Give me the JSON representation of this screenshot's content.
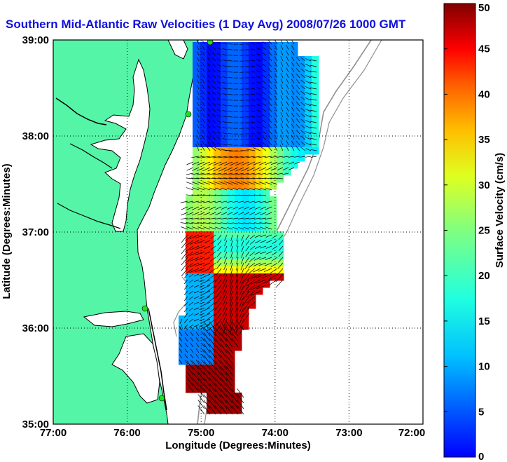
{
  "title": "Southern Mid-Atlantic Raw Velocities (1 Day Avg) 2008/07/26 1000 GMT",
  "map": {
    "xlabel": "Longitude (Degrees:Minutes)",
    "ylabel": "Latitude (Degrees:Minutes)",
    "x_ticks": [
      "77:00",
      "76:00",
      "75:00",
      "74:00",
      "73:00",
      "72:00"
    ],
    "y_ticks": [
      "39:00",
      "38:00",
      "37:00",
      "36:00",
      "35:00"
    ],
    "lon_range": [
      -77,
      -72
    ],
    "lat_range": [
      35,
      39
    ],
    "grid": "dotted",
    "colors": {
      "land": "#55f5a8",
      "water": "#ffffff",
      "coast": "#000000",
      "bathymetry": "#909090",
      "sites": "#22dd22"
    }
  },
  "colorbar": {
    "label": "Surface Velocity (cm/s)",
    "ticks": [
      "0",
      "5",
      "10",
      "15",
      "20",
      "25",
      "30",
      "35",
      "40",
      "45",
      "50"
    ],
    "range": [
      0,
      50
    ],
    "colormap": "jet"
  }
}
